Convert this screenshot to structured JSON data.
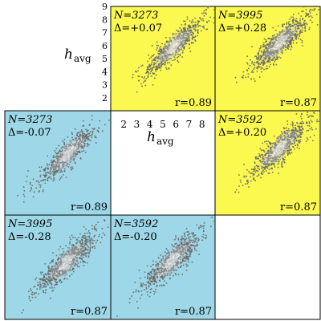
{
  "figure": {
    "axis_label": "h",
    "axis_label_sub": "avg",
    "ticks_y": [
      "2",
      "3",
      "4",
      "5",
      "6",
      "7",
      "8",
      "9"
    ],
    "ticks_x": [
      "2",
      "3",
      "4",
      "5",
      "6",
      "7",
      "8"
    ]
  },
  "colors": {
    "upper_panel": "#fbf94f",
    "lower_panel": "#9ed8e8",
    "points": "#666666",
    "density_core": "#ffffff"
  },
  "chart_data": {
    "type": "scatter",
    "layout": "3x3 pairwise matrix; diagonal cells empty except the axis-label cell",
    "panels": [
      {
        "id": "p12",
        "row": 1,
        "col": 2,
        "N_label": "N=3273",
        "delta_label": "Δ=+0.07",
        "r_label": "r=0.89",
        "N": 3273,
        "delta": 0.07,
        "r": 0.89,
        "shading": "upper"
      },
      {
        "id": "p13",
        "row": 1,
        "col": 3,
        "N_label": "N=3995",
        "delta_label": "Δ=+0.28",
        "r_label": "r=0.87",
        "N": 3995,
        "delta": 0.28,
        "r": 0.87,
        "shading": "upper"
      },
      {
        "id": "p21",
        "row": 2,
        "col": 1,
        "N_label": "N=3273",
        "delta_label": "Δ=-0.07",
        "r_label": "r=0.89",
        "N": 3273,
        "delta": -0.07,
        "r": 0.89,
        "shading": "lower"
      },
      {
        "id": "p23",
        "row": 2,
        "col": 3,
        "N_label": "N=3592",
        "delta_label": "Δ=+0.20",
        "r_label": "r=0.87",
        "N": 3592,
        "delta": 0.2,
        "r": 0.87,
        "shading": "upper"
      },
      {
        "id": "p31",
        "row": 3,
        "col": 1,
        "N_label": "N=3995",
        "delta_label": "Δ=-0.28",
        "r_label": "r=0.87",
        "N": 3995,
        "delta": -0.28,
        "r": 0.87,
        "shading": "lower"
      },
      {
        "id": "p32",
        "row": 3,
        "col": 2,
        "N_label": "N=3592",
        "delta_label": "Δ=-0.20",
        "r_label": "r=0.87",
        "N": 3592,
        "delta": -0.2,
        "r": 0.87,
        "shading": "lower"
      }
    ],
    "xlim": [
      1,
      9
    ],
    "ylim": [
      1,
      9
    ],
    "grid": false,
    "legend": "none"
  }
}
